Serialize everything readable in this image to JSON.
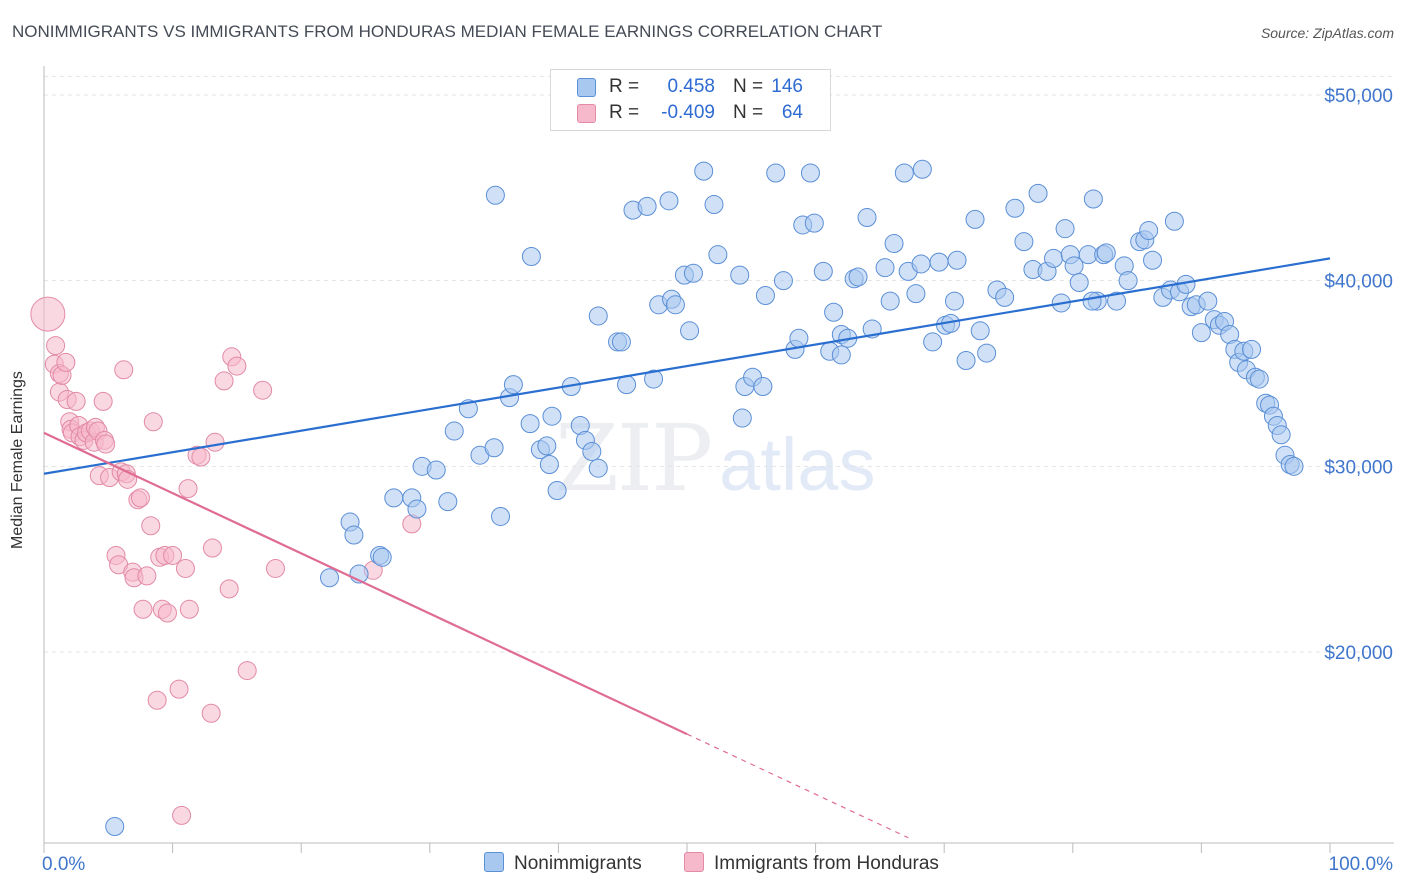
{
  "header": {
    "title": "NONIMMIGRANTS VS IMMIGRANTS FROM HONDURAS MEDIAN FEMALE EARNINGS CORRELATION CHART",
    "source": "Source: ZipAtlas.com"
  },
  "watermark": {
    "zip": "ZIP",
    "atlas": "atlas"
  },
  "legend": {
    "rows": [
      {
        "r_label": "R =",
        "r_value": "0.458",
        "n_label": "N =",
        "n_value": "146",
        "color": "#a9c8f0"
      },
      {
        "r_label": "R =",
        "r_value": "-0.409",
        "n_label": "N =",
        "n_value": "64",
        "color": "#f6b8cb"
      }
    ]
  },
  "bottom_legend": {
    "series1": "Nonimmigrants",
    "series2": "Immigrants from Honduras"
  },
  "colors": {
    "blue_fill": "#a9c8f0",
    "blue_stroke": "#5b8fd6",
    "blue_line": "#2a6fd0",
    "pink_fill": "#f6b8cb",
    "pink_stroke": "#e28aa6",
    "pink_line": "#e06b93",
    "tick_label": "#3f76cc",
    "grid": "#e3e3e3"
  },
  "chart_data": {
    "type": "scatter",
    "title": "NONIMMIGRANTS VS IMMIGRANTS FROM HONDURAS MEDIAN FEMALE EARNINGS CORRELATION CHART",
    "xlabel": "",
    "ylabel": "Median Female Earnings",
    "xlim": [
      0,
      100
    ],
    "ylim": [
      10000,
      51000
    ],
    "x_tick_labels": [
      "0.0%",
      "100.0%"
    ],
    "y_ticks": [
      20000,
      30000,
      40000,
      50000
    ],
    "y_tick_labels": [
      "$20,000",
      "$30,000",
      "$40,000",
      "$50,000"
    ],
    "grid": true,
    "legend_position": "top-center",
    "series": [
      {
        "name": "Nonimmigrants",
        "r": 0.458,
        "n": 146,
        "trend": {
          "x": [
            0,
            100
          ],
          "y": [
            29600,
            41200
          ],
          "dashed_from": null
        },
        "points": [
          [
            5.5,
            10600
          ],
          [
            22.2,
            24000
          ],
          [
            23.8,
            27000
          ],
          [
            24.1,
            26300
          ],
          [
            24.5,
            24200
          ],
          [
            26.1,
            25200
          ],
          [
            26.3,
            25100
          ],
          [
            27.2,
            28300
          ],
          [
            28.6,
            28300
          ],
          [
            29.0,
            27700
          ],
          [
            29.4,
            30000
          ],
          [
            30.5,
            29800
          ],
          [
            31.4,
            28100
          ],
          [
            31.9,
            31900
          ],
          [
            33.0,
            33100
          ],
          [
            33.9,
            30600
          ],
          [
            35.0,
            31000
          ],
          [
            35.1,
            44600
          ],
          [
            35.5,
            27300
          ],
          [
            36.2,
            33700
          ],
          [
            36.5,
            34400
          ],
          [
            37.8,
            32300
          ],
          [
            37.9,
            41300
          ],
          [
            38.6,
            30900
          ],
          [
            39.1,
            31100
          ],
          [
            39.3,
            30100
          ],
          [
            39.5,
            32700
          ],
          [
            39.9,
            28700
          ],
          [
            41.0,
            34300
          ],
          [
            41.7,
            32200
          ],
          [
            42.1,
            31400
          ],
          [
            42.6,
            30800
          ],
          [
            43.1,
            29900
          ],
          [
            43.1,
            38100
          ],
          [
            44.6,
            36700
          ],
          [
            44.9,
            36700
          ],
          [
            45.3,
            34400
          ],
          [
            45.8,
            43800
          ],
          [
            46.9,
            44000
          ],
          [
            47.4,
            34700
          ],
          [
            47.8,
            38700
          ],
          [
            48.6,
            44300
          ],
          [
            48.8,
            39000
          ],
          [
            49.1,
            38700
          ],
          [
            49.8,
            40300
          ],
          [
            50.2,
            37300
          ],
          [
            50.5,
            40400
          ],
          [
            51.1,
            48900
          ],
          [
            51.3,
            45900
          ],
          [
            52.1,
            44100
          ],
          [
            52.4,
            41400
          ],
          [
            54.1,
            40300
          ],
          [
            54.3,
            32600
          ],
          [
            54.5,
            34300
          ],
          [
            55.1,
            34800
          ],
          [
            55.9,
            34300
          ],
          [
            56.1,
            39200
          ],
          [
            56.9,
            45800
          ],
          [
            57.5,
            40000
          ],
          [
            58.4,
            36300
          ],
          [
            58.7,
            36900
          ],
          [
            59.0,
            43000
          ],
          [
            59.9,
            43100
          ],
          [
            60.6,
            40500
          ],
          [
            61.1,
            36200
          ],
          [
            61.4,
            38300
          ],
          [
            62.0,
            37100
          ],
          [
            62.5,
            36900
          ],
          [
            63.0,
            40100
          ],
          [
            63.3,
            40200
          ],
          [
            64.0,
            43400
          ],
          [
            64.4,
            37400
          ],
          [
            65.4,
            40700
          ],
          [
            65.8,
            38900
          ],
          [
            66.1,
            42000
          ],
          [
            66.9,
            45800
          ],
          [
            67.2,
            40500
          ],
          [
            67.8,
            39300
          ],
          [
            68.2,
            40900
          ],
          [
            69.1,
            36700
          ],
          [
            69.6,
            41000
          ],
          [
            70.1,
            37600
          ],
          [
            70.5,
            37700
          ],
          [
            70.8,
            38900
          ],
          [
            71.0,
            41100
          ],
          [
            71.7,
            35700
          ],
          [
            72.4,
            43300
          ],
          [
            72.8,
            37300
          ],
          [
            73.3,
            36100
          ],
          [
            74.1,
            39500
          ],
          [
            74.7,
            39100
          ],
          [
            75.5,
            43900
          ],
          [
            76.2,
            42100
          ],
          [
            76.9,
            40600
          ],
          [
            77.3,
            44700
          ],
          [
            78.0,
            40500
          ],
          [
            78.5,
            41200
          ],
          [
            79.1,
            38800
          ],
          [
            79.4,
            42800
          ],
          [
            79.8,
            41400
          ],
          [
            80.1,
            40800
          ],
          [
            80.5,
            39900
          ],
          [
            81.2,
            41400
          ],
          [
            81.6,
            44400
          ],
          [
            81.9,
            38900
          ],
          [
            82.4,
            41400
          ],
          [
            82.6,
            41500
          ],
          [
            83.4,
            38900
          ],
          [
            84.0,
            40800
          ],
          [
            84.3,
            40000
          ],
          [
            85.2,
            42100
          ],
          [
            85.6,
            42200
          ],
          [
            85.9,
            42700
          ],
          [
            86.2,
            41100
          ],
          [
            87.0,
            39100
          ],
          [
            87.6,
            39500
          ],
          [
            87.9,
            43200
          ],
          [
            88.3,
            39400
          ],
          [
            88.8,
            39800
          ],
          [
            89.2,
            38600
          ],
          [
            89.6,
            38700
          ],
          [
            90.0,
            37200
          ],
          [
            90.5,
            38900
          ],
          [
            91.0,
            37900
          ],
          [
            91.4,
            37600
          ],
          [
            91.8,
            37800
          ],
          [
            92.2,
            37100
          ],
          [
            92.6,
            36300
          ],
          [
            92.9,
            35600
          ],
          [
            93.3,
            36200
          ],
          [
            93.5,
            35200
          ],
          [
            93.9,
            36300
          ],
          [
            94.2,
            34800
          ],
          [
            94.5,
            34700
          ],
          [
            95.0,
            33400
          ],
          [
            95.3,
            33300
          ],
          [
            95.6,
            32700
          ],
          [
            95.9,
            32200
          ],
          [
            96.2,
            31700
          ],
          [
            96.5,
            30600
          ],
          [
            96.9,
            30100
          ],
          [
            97.2,
            30000
          ],
          [
            59.6,
            45800
          ],
          [
            68.3,
            46000
          ],
          [
            62.0,
            36000
          ],
          [
            81.5,
            38900
          ]
        ]
      },
      {
        "name": "Immigrants from Honduras",
        "r": -0.409,
        "n": 64,
        "trend": {
          "x": [
            0,
            67.2
          ],
          "y": [
            31800,
            10000
          ],
          "dashed_from": 50
        },
        "points": [
          [
            0.3,
            38200
          ],
          [
            0.8,
            35500
          ],
          [
            0.9,
            36500
          ],
          [
            1.2,
            34000
          ],
          [
            1.2,
            35000
          ],
          [
            1.4,
            34900
          ],
          [
            1.7,
            35600
          ],
          [
            1.8,
            33600
          ],
          [
            2.0,
            32400
          ],
          [
            2.1,
            32000
          ],
          [
            2.2,
            31800
          ],
          [
            2.5,
            33500
          ],
          [
            2.7,
            32200
          ],
          [
            2.8,
            31600
          ],
          [
            3.1,
            31400
          ],
          [
            3.3,
            31800
          ],
          [
            3.6,
            31900
          ],
          [
            3.9,
            31300
          ],
          [
            4.0,
            32100
          ],
          [
            4.2,
            31900
          ],
          [
            4.3,
            29500
          ],
          [
            4.6,
            33500
          ],
          [
            4.7,
            31400
          ],
          [
            4.8,
            31200
          ],
          [
            5.1,
            29400
          ],
          [
            5.6,
            25200
          ],
          [
            5.8,
            24700
          ],
          [
            6.0,
            29700
          ],
          [
            6.2,
            35200
          ],
          [
            6.4,
            29600
          ],
          [
            6.5,
            29300
          ],
          [
            6.9,
            24300
          ],
          [
            7.0,
            24000
          ],
          [
            7.3,
            28200
          ],
          [
            7.5,
            28300
          ],
          [
            7.7,
            22300
          ],
          [
            8.0,
            24100
          ],
          [
            8.3,
            26800
          ],
          [
            8.5,
            32400
          ],
          [
            8.8,
            17400
          ],
          [
            9.0,
            25100
          ],
          [
            9.2,
            22300
          ],
          [
            9.4,
            25200
          ],
          [
            9.6,
            22100
          ],
          [
            10.0,
            25200
          ],
          [
            10.5,
            18000
          ],
          [
            10.7,
            11200
          ],
          [
            11.0,
            24500
          ],
          [
            11.2,
            28800
          ],
          [
            11.3,
            22300
          ],
          [
            11.9,
            30600
          ],
          [
            12.2,
            30500
          ],
          [
            13.0,
            16700
          ],
          [
            13.1,
            25600
          ],
          [
            13.3,
            31300
          ],
          [
            14.0,
            34600
          ],
          [
            14.4,
            23400
          ],
          [
            14.6,
            35900
          ],
          [
            15.0,
            35400
          ],
          [
            15.8,
            19000
          ],
          [
            17.0,
            34100
          ],
          [
            18.0,
            24500
          ],
          [
            25.6,
            24400
          ],
          [
            28.6,
            26900
          ]
        ]
      }
    ]
  }
}
